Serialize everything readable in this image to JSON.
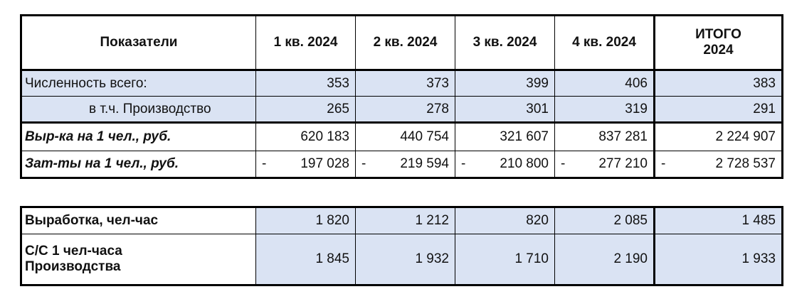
{
  "table1": {
    "header": [
      "Показатели",
      "1 кв. 2024",
      "2 кв. 2024",
      "3 кв. 2024",
      "4 кв. 2024",
      "ИТОГО 2024"
    ],
    "rows": [
      [
        "Численность всего:",
        "353",
        "373",
        "399",
        "406",
        "383"
      ],
      [
        "в т.ч. Производство",
        "265",
        "278",
        "301",
        "319",
        "291"
      ],
      [
        "Выр-ка на 1 чел., руб.",
        "620 183",
        "440 754",
        "321 607",
        "837 281",
        "2 224 907"
      ],
      [
        "Зат-ты на 1 чел., руб.",
        {
          "sign": "-",
          "value": "197 028"
        },
        {
          "sign": "-",
          "value": "219 594"
        },
        {
          "sign": "-",
          "value": "210 800"
        },
        {
          "sign": "-",
          "value": "277 210"
        },
        {
          "sign": "-",
          "value": "2 728 537"
        }
      ]
    ]
  },
  "table2": {
    "rows": [
      [
        "Выработка, чел-час",
        "1 820",
        "1 212",
        "820",
        "2 085",
        "1 485"
      ],
      [
        "С/С 1 чел-часа Производства",
        "1 845",
        "1 932",
        "1 710",
        "2 190",
        "1 933"
      ]
    ]
  }
}
